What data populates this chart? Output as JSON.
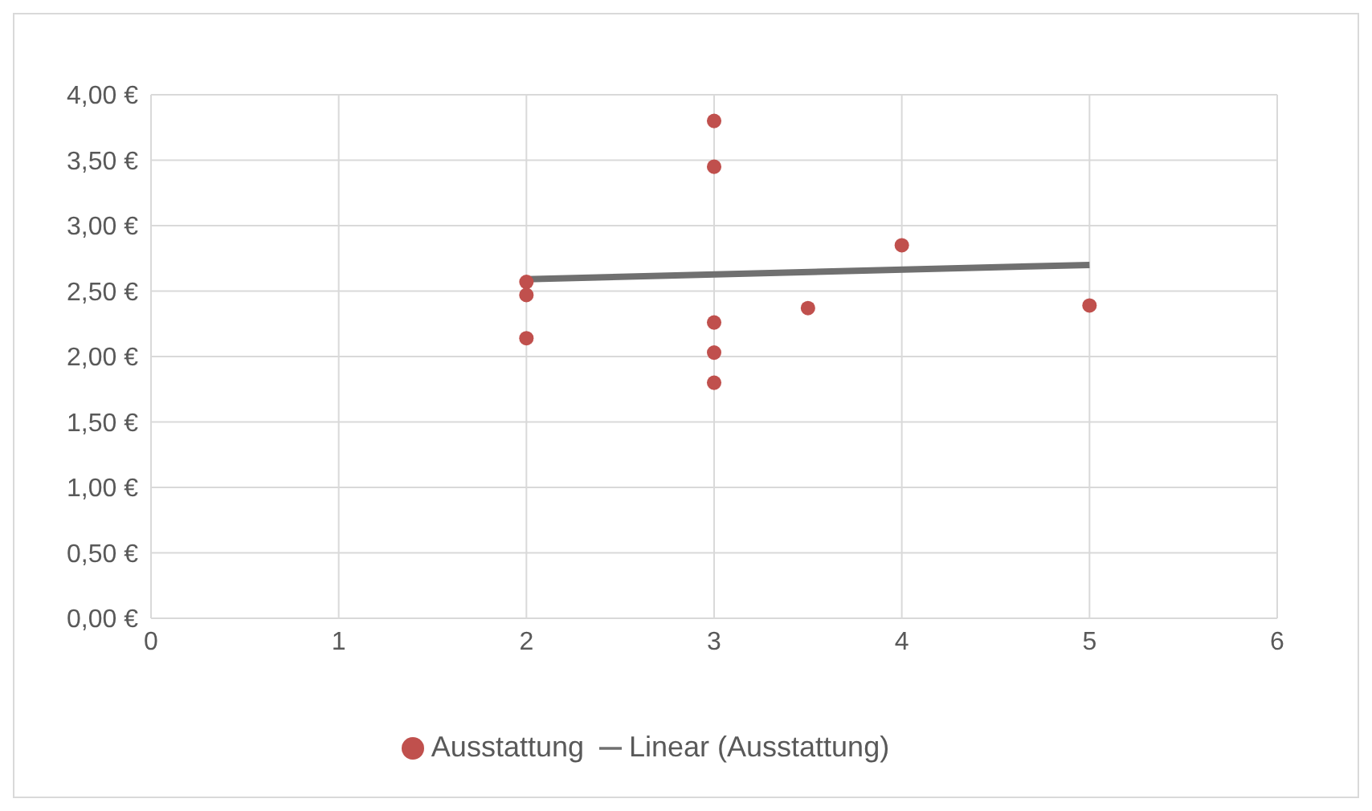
{
  "chart_data": {
    "type": "scatter",
    "xlim": [
      0,
      6
    ],
    "xticks": [
      0,
      1,
      2,
      3,
      4,
      5,
      6
    ],
    "ylim": [
      0,
      4
    ],
    "yticks": [
      {
        "value": 0,
        "label": "0,00 €"
      },
      {
        "value": 0.5,
        "label": "0,50 €"
      },
      {
        "value": 1,
        "label": "1,00 €"
      },
      {
        "value": 1.5,
        "label": "1,50 €"
      },
      {
        "value": 2,
        "label": "2,00 €"
      },
      {
        "value": 2.5,
        "label": "2,50 €"
      },
      {
        "value": 3,
        "label": "3,00 €"
      },
      {
        "value": 3.5,
        "label": "3,50 €"
      },
      {
        "value": 4,
        "label": "4,00 €"
      }
    ],
    "grid": true,
    "legend": "bottom",
    "series": [
      {
        "name": "Ausstattung",
        "marker": "circle",
        "color": "#c0504d",
        "x": [
          2,
          2,
          2,
          3,
          3,
          3,
          3,
          3,
          3.5,
          4,
          5
        ],
        "values": [
          2.57,
          2.47,
          2.14,
          3.8,
          3.45,
          2.26,
          2.03,
          1.8,
          2.37,
          2.85,
          2.39
        ]
      },
      {
        "name": "Linear (Ausstattung)",
        "type": "line",
        "color": "#707070",
        "line_style": "solid",
        "marker": "none",
        "x": [
          2,
          5
        ],
        "values": [
          2.59,
          2.7
        ]
      }
    ]
  }
}
